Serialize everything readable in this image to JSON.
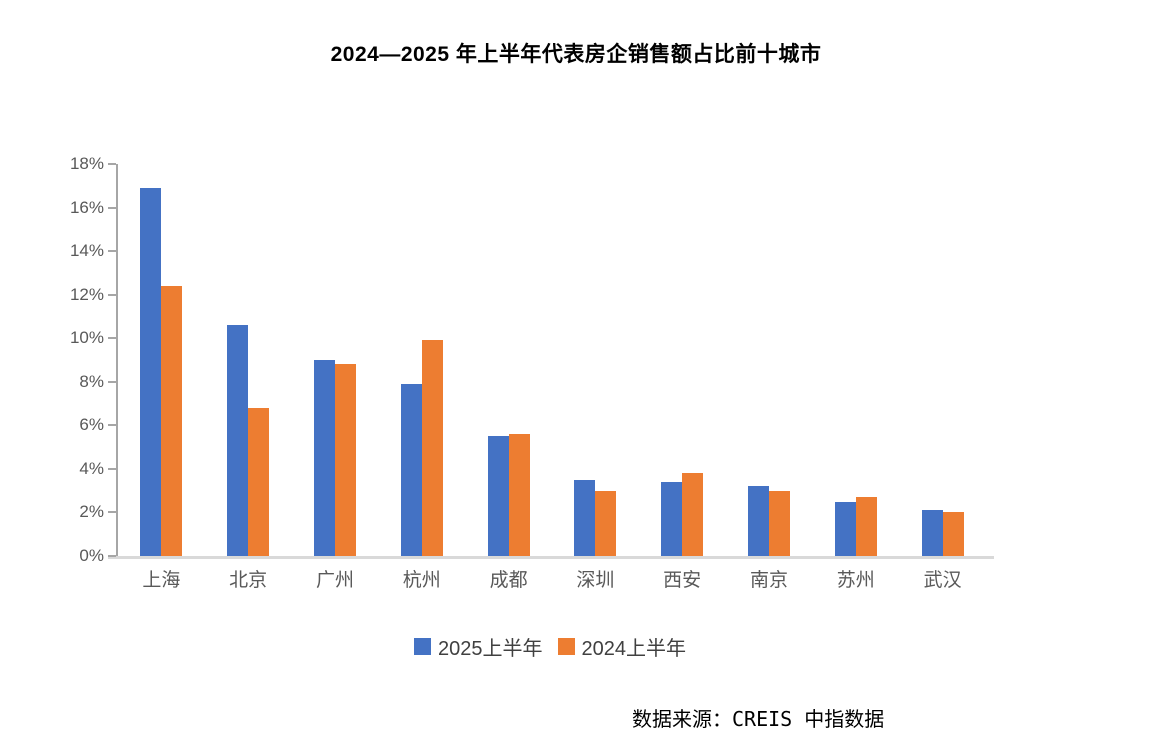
{
  "title": "2024—2025 年上半年代表房企销售额占比前十城市",
  "source": "数据来源：CREIS 中指数据",
  "colors": {
    "series_2025": "#4472C4",
    "series_2024": "#ED7D31",
    "axis_text": "#595959",
    "axis_line": "#A6A6A6",
    "baseline": "#D9D9D9",
    "title_text": "#000000",
    "legend_text": "#404040"
  },
  "chart_data": {
    "type": "bar",
    "title": "2024—2025 年上半年代表房企销售额占比前十城市",
    "categories": [
      "上海",
      "北京",
      "广州",
      "杭州",
      "成都",
      "深圳",
      "西安",
      "南京",
      "苏州",
      "武汉"
    ],
    "series": [
      {
        "name": "2025上半年",
        "color": "#4472C4",
        "values": [
          16.9,
          10.6,
          9.0,
          7.9,
          5.5,
          3.5,
          3.4,
          3.2,
          2.5,
          2.1
        ]
      },
      {
        "name": "2024上半年",
        "color": "#ED7D31",
        "values": [
          12.4,
          6.8,
          8.8,
          9.9,
          5.6,
          3.0,
          3.8,
          3.0,
          2.7,
          2.0
        ]
      }
    ],
    "ylim": [
      0,
      18
    ],
    "ytick_step": 2,
    "yticks": [
      "0%",
      "2%",
      "4%",
      "6%",
      "8%",
      "10%",
      "12%",
      "14%",
      "16%",
      "18%"
    ],
    "xlabel": "",
    "ylabel": "",
    "grid": false,
    "legend_position": "bottom"
  }
}
